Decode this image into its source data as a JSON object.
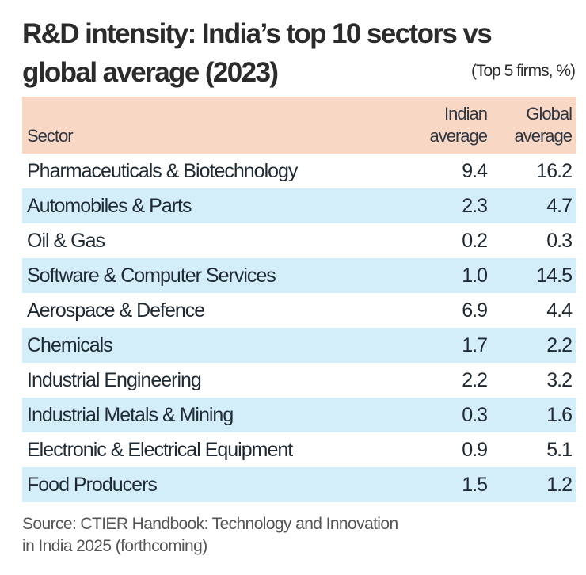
{
  "chart_data": {
    "type": "table",
    "title_line1": "R&D intensity: India’s top 10 sectors vs",
    "title_line2": "global average (2023)",
    "unit_note": "(Top 5 firms, %)",
    "columns": {
      "sector": "Sector",
      "indian_l1": "Indian",
      "indian_l2": "average",
      "global_l1": "Global",
      "global_l2": "average"
    },
    "rows": [
      {
        "sector": "Pharmaceuticals & Biotechnology",
        "indian": "9.4",
        "global": "16.2"
      },
      {
        "sector": "Automobiles & Parts",
        "indian": "2.3",
        "global": "4.7"
      },
      {
        "sector": "Oil & Gas",
        "indian": "0.2",
        "global": "0.3"
      },
      {
        "sector": "Software & Computer Services",
        "indian": "1.0",
        "global": "14.5"
      },
      {
        "sector": "Aerospace & Defence",
        "indian": "6.9",
        "global": "4.4"
      },
      {
        "sector": "Chemicals",
        "indian": "1.7",
        "global": "2.2"
      },
      {
        "sector": "Industrial Engineering",
        "indian": "2.2",
        "global": "3.2"
      },
      {
        "sector": "Industrial Metals & Mining",
        "indian": "0.3",
        "global": "1.6"
      },
      {
        "sector": "Electronic & Electrical Equipment",
        "indian": "0.9",
        "global": "5.1"
      },
      {
        "sector": "Food Producers",
        "indian": "1.5",
        "global": "1.2"
      }
    ],
    "source_line1": "Source: CTIER Handbook: Technology and Innovation",
    "source_line2": "in India 2025 (forthcoming)",
    "colors": {
      "header": "#f8d7c5",
      "stripe": "#d3edf9"
    }
  }
}
